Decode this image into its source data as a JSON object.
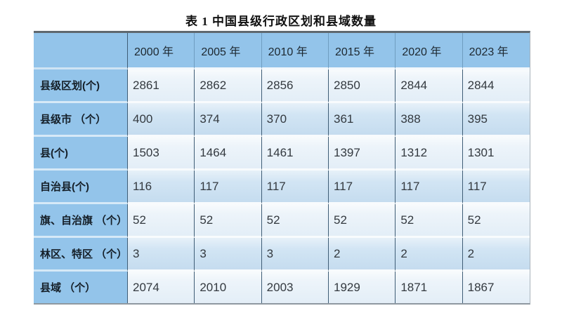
{
  "title": "表 1  中国县级行政区划和县域数量",
  "chart_data": {
    "type": "table",
    "title": "表 1  中国县级行政区划和县域数量",
    "columns": [
      "2000 年",
      "2005 年",
      "2010 年",
      "2015 年",
      "2020 年",
      "2023 年"
    ],
    "rows": [
      {
        "label": "县级区划(个)",
        "values": [
          2861,
          2862,
          2856,
          2850,
          2844,
          2844
        ]
      },
      {
        "label": "县级市 （个）",
        "values": [
          400,
          374,
          370,
          361,
          388,
          395
        ]
      },
      {
        "label": "县(个)",
        "values": [
          1503,
          1464,
          1461,
          1397,
          1312,
          1301
        ]
      },
      {
        "label": "自治县(个)",
        "values": [
          116,
          117,
          117,
          117,
          117,
          117
        ]
      },
      {
        "label": "旗、自治旗 （个）",
        "values": [
          52,
          52,
          52,
          52,
          52,
          52
        ]
      },
      {
        "label": "林区、特区 （个）",
        "values": [
          3,
          3,
          3,
          2,
          2,
          2
        ]
      },
      {
        "label": "县域 （个）",
        "values": [
          2074,
          2010,
          2003,
          1929,
          1871,
          1867
        ]
      }
    ],
    "layout": {
      "legend": "none",
      "grid": "on",
      "header_position": "top-and-left"
    },
    "colors": {
      "header_bg": "#93c4ea",
      "label_column_bg": "#93c4ea",
      "row_odd_bg": "#edf4fa",
      "row_even_bg": "#cde2f2",
      "grid_line_vertical": "#3f5d76",
      "row_separator": "#f8fbfd",
      "table_top_border": "#5f686e",
      "table_bottom_border": "#8f98a0",
      "title_color": "#111111",
      "label_text": "#151f28",
      "value_text": "#33393f"
    }
  }
}
